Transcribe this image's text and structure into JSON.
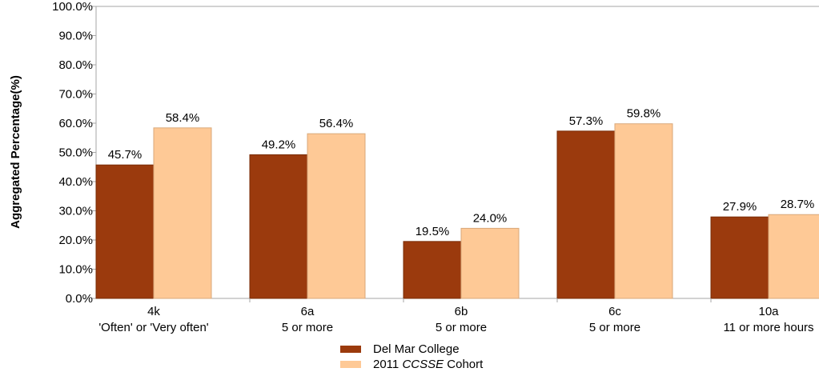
{
  "chart_data": {
    "type": "bar",
    "categories": [
      {
        "code": "4k",
        "detail": "'Often' or 'Very often'"
      },
      {
        "code": "6a",
        "detail": "5 or more"
      },
      {
        "code": "6b",
        "detail": "5 or more"
      },
      {
        "code": "6c",
        "detail": "5 or more"
      },
      {
        "code": "10a",
        "detail": "11 or more hours"
      }
    ],
    "series": [
      {
        "name": "Del Mar College",
        "color": "#9b3a0d",
        "values": [
          45.7,
          49.2,
          19.5,
          57.3,
          27.9
        ],
        "labels": [
          "45.7%",
          "49.2%",
          "19.5%",
          "57.3%",
          "27.9%"
        ]
      },
      {
        "name": "2011 CCSSE Cohort",
        "name_prefix": "2011 ",
        "name_italic": "CCSSE",
        "name_suffix": " Cohort",
        "color": "#fec996",
        "values": [
          58.4,
          56.4,
          24.0,
          59.8,
          28.7
        ],
        "labels": [
          "58.4%",
          "56.4%",
          "24.0%",
          "59.8%",
          "28.7%"
        ]
      }
    ],
    "ylabel": "Aggregated Percentage(%)",
    "ylim": [
      0,
      100
    ],
    "yticks": [
      "0.0%",
      "10.0%",
      "20.0%",
      "30.0%",
      "40.0%",
      "50.0%",
      "60.0%",
      "70.0%",
      "80.0%",
      "90.0%",
      "100.0%"
    ],
    "grid": false,
    "legend_position": "bottom-center"
  }
}
